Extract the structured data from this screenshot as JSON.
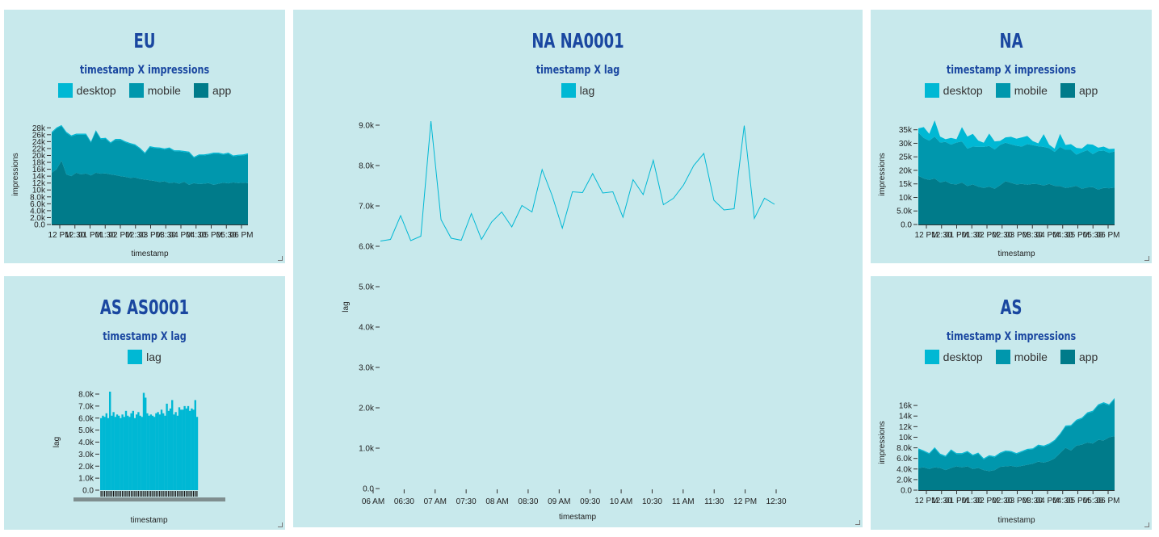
{
  "colors": {
    "desktop": "#00b8d4",
    "mobile": "#0097ad",
    "app": "#007b8a",
    "lag": "#00b8d4"
  },
  "panels": {
    "eu": {
      "title": "EU",
      "subtitle": "timestamp X impressions",
      "legend": [
        "desktop",
        "mobile",
        "app"
      ],
      "xlabel": "timestamp",
      "ylabel": "impressions"
    },
    "na1": {
      "title": "NA NA0001",
      "subtitle": "timestamp X lag",
      "legend": [
        "lag"
      ],
      "xlabel": "timestamp",
      "ylabel": "lag"
    },
    "na": {
      "title": "NA",
      "subtitle": "timestamp X impressions",
      "legend": [
        "desktop",
        "mobile",
        "app"
      ],
      "xlabel": "timestamp",
      "ylabel": "impressions"
    },
    "as1": {
      "title": "AS AS0001",
      "subtitle": "timestamp X lag",
      "legend": [
        "lag"
      ],
      "xlabel": "timestamp",
      "ylabel": "lag"
    },
    "as": {
      "title": "AS",
      "subtitle": "timestamp X impressions",
      "legend": [
        "desktop",
        "mobile",
        "app"
      ],
      "xlabel": "timestamp",
      "ylabel": "impressions"
    }
  },
  "chart_data": [
    {
      "id": "eu",
      "type": "area",
      "stacked": true,
      "ylim": [
        0,
        29000
      ],
      "yticks": [
        "0.0",
        "2.0k",
        "4.0k",
        "6.0k",
        "8.0k",
        "10k",
        "12k",
        "14k",
        "16k",
        "18k",
        "20k",
        "22k",
        "24k",
        "26k",
        "28k"
      ],
      "xticks": [
        "12 PM",
        "12:30",
        "01 PM",
        "01:30",
        "02 PM",
        "02:30",
        "03 PM",
        "03:30",
        "04 PM",
        "04:30",
        "05 PM",
        "05:30",
        "06 PM"
      ],
      "series": [
        {
          "name": "app",
          "values": [
            15000,
            16000,
            18500,
            14500,
            14000,
            15000,
            14500,
            14800,
            14200,
            15000,
            14700,
            14800,
            14500,
            14300,
            14000,
            13800,
            13500,
            13600,
            13200,
            13000,
            12800,
            12600,
            12300,
            12500,
            12000,
            12200,
            11800,
            12400,
            11500,
            12000,
            11700,
            11800,
            12000,
            11500,
            11800,
            12100,
            11900,
            12200,
            12000,
            12100,
            12000
          ]
        },
        {
          "name": "mobile",
          "values": [
            11500,
            11800,
            10000,
            12000,
            11500,
            11000,
            11500,
            11200,
            9500,
            12000,
            10000,
            10000,
            9000,
            10200,
            10500,
            10000,
            9800,
            9300,
            8700,
            7500,
            9600,
            9500,
            9700,
            9200,
            10000,
            9000,
            9400,
            8600,
            9300,
            7300,
            8300,
            8200,
            8200,
            9000,
            8700,
            8100,
            8600,
            7500,
            7900,
            7900,
            8300
          ]
        },
        {
          "name": "desktop",
          "values": [
            300,
            300,
            300,
            300,
            300,
            300,
            300,
            300,
            300,
            300,
            300,
            300,
            300,
            300,
            300,
            300,
            300,
            300,
            300,
            300,
            300,
            300,
            300,
            300,
            300,
            300,
            300,
            300,
            300,
            300,
            300,
            300,
            300,
            300,
            300,
            300,
            300,
            300,
            300,
            300,
            300
          ]
        }
      ]
    },
    {
      "id": "na1",
      "type": "line",
      "ylim": [
        0,
        9000
      ],
      "yticks": [
        "0.0",
        "1.0k",
        "2.0k",
        "3.0k",
        "4.0k",
        "5.0k",
        "6.0k",
        "7.0k",
        "8.0k",
        "9.0k"
      ],
      "xticks": [
        "06 AM",
        "06:30",
        "07 AM",
        "07:30",
        "08 AM",
        "08:30",
        "09 AM",
        "09:30",
        "10 AM",
        "10:30",
        "11 AM",
        "11:30",
        "12 PM",
        "12:30"
      ],
      "series": [
        {
          "name": "lag",
          "values": [
            6130,
            6170,
            6760,
            6140,
            6250,
            9100,
            6660,
            6200,
            6150,
            6810,
            6170,
            6600,
            6850,
            6480,
            7010,
            6850,
            7900,
            7250,
            6450,
            7350,
            7330,
            7800,
            7320,
            7350,
            6720,
            7650,
            7280,
            8130,
            7030,
            7190,
            7520,
            8000,
            8300,
            7140,
            6900,
            6930,
            8990,
            6690,
            7190,
            7040
          ]
        }
      ]
    },
    {
      "id": "na",
      "type": "area",
      "stacked": true,
      "ylim": [
        0,
        37000
      ],
      "yticks": [
        "0.0",
        "5.0k",
        "10k",
        "15k",
        "20k",
        "25k",
        "30k",
        "35k"
      ],
      "xticks": [
        "12 PM",
        "12:30",
        "01 PM",
        "01:30",
        "02 PM",
        "02:30",
        "03 PM",
        "03:30",
        "04 PM",
        "04:30",
        "05 PM",
        "05:30",
        "06 PM"
      ],
      "series": [
        {
          "name": "app",
          "values": [
            18000,
            17000,
            16500,
            17000,
            15500,
            16000,
            15000,
            14800,
            15500,
            14200,
            14800,
            14000,
            13500,
            14000,
            13200,
            14500,
            16000,
            15400,
            14800,
            15000,
            14700,
            15000,
            14900,
            14400,
            15000,
            14300,
            14200,
            13500,
            13800,
            14300,
            13200,
            13700,
            13800,
            12900,
            13500,
            13400,
            13600
          ]
        },
        {
          "name": "mobile",
          "values": [
            16000,
            15000,
            14500,
            15500,
            14800,
            14500,
            14500,
            15500,
            15200,
            13800,
            14000,
            14700,
            15200,
            15000,
            14500,
            14900,
            14200,
            14200,
            14300,
            13800,
            15000,
            14300,
            14000,
            14300,
            13200,
            12500,
            14500,
            14100,
            13800,
            11500,
            13500,
            13800,
            12200,
            14200,
            13800,
            13100,
            13400
          ]
        },
        {
          "name": "desktop",
          "values": [
            1500,
            4000,
            2500,
            6000,
            2200,
            1000,
            2500,
            1200,
            5300,
            4500,
            4700,
            2300,
            1500,
            4600,
            3000,
            1500,
            2000,
            2800,
            2600,
            3400,
            3000,
            1500,
            1100,
            4700,
            1300,
            1200,
            4800,
            1800,
            2100,
            2500,
            1400,
            2200,
            3500,
            1300,
            1500,
            1400,
            1000
          ]
        }
      ]
    },
    {
      "id": "as1",
      "type": "bar",
      "ylim": [
        0,
        8000
      ],
      "yticks": [
        "0.0",
        "1.0k",
        "2.0k",
        "3.0k",
        "4.0k",
        "5.0k",
        "6.0k",
        "7.0k",
        "8.0k"
      ],
      "series": [
        {
          "name": "lag",
          "values": [
            6000,
            6200,
            6100,
            6400,
            6000,
            8200,
            6200,
            6500,
            6100,
            6300,
            6200,
            6000,
            6300,
            6100,
            6600,
            6200,
            6100,
            6400,
            6600,
            6000,
            6300,
            6500,
            6200,
            6100,
            8100,
            7700,
            6400,
            6200,
            6300,
            6200,
            6100,
            6400,
            6500,
            6300,
            6700,
            6400,
            6200,
            7200,
            6600,
            6800,
            7500,
            6300,
            6500,
            6200,
            6900,
            6700,
            6700,
            7000,
            6800,
            7000,
            6600,
            6800,
            6700,
            7500,
            6100
          ]
        }
      ]
    },
    {
      "id": "as",
      "type": "area",
      "stacked": true,
      "ylim": [
        0,
        18000
      ],
      "yticks": [
        "0.0",
        "2.0k",
        "4.0k",
        "6.0k",
        "8.0k",
        "10k",
        "12k",
        "14k",
        "16k"
      ],
      "xticks": [
        "12 PM",
        "12:30",
        "01 PM",
        "01:30",
        "02 PM",
        "02:30",
        "03 PM",
        "03:30",
        "04 PM",
        "04:30",
        "05 PM",
        "05:30",
        "06 PM"
      ],
      "series": [
        {
          "name": "app",
          "values": [
            4200,
            4300,
            4000,
            4300,
            4200,
            3800,
            4200,
            4500,
            4300,
            4500,
            4000,
            4200,
            3800,
            3600,
            3800,
            4400,
            4500,
            4600,
            4400,
            4600,
            4800,
            5000,
            5400,
            5200,
            5500,
            6000,
            7000,
            8000,
            7500,
            8400,
            8600,
            9000,
            8800,
            9500,
            9400,
            10000,
            10200
          ]
        },
        {
          "name": "mobile",
          "values": [
            3500,
            3000,
            2800,
            3600,
            2500,
            2500,
            3300,
            2300,
            2500,
            2700,
            2500,
            2700,
            2000,
            2800,
            2400,
            2500,
            2800,
            2600,
            2400,
            2600,
            2800,
            2700,
            3000,
            3000,
            3100,
            3300,
            3500,
            4000,
            4600,
            4700,
            4900,
            5500,
            6000,
            6500,
            7000,
            6000,
            7000
          ]
        },
        {
          "name": "desktop",
          "values": [
            200,
            200,
            200,
            200,
            200,
            200,
            200,
            200,
            200,
            200,
            200,
            200,
            200,
            200,
            200,
            200,
            200,
            200,
            200,
            200,
            200,
            200,
            200,
            200,
            200,
            200,
            200,
            200,
            200,
            200,
            200,
            200,
            200,
            200,
            200,
            200,
            200
          ]
        }
      ]
    }
  ]
}
